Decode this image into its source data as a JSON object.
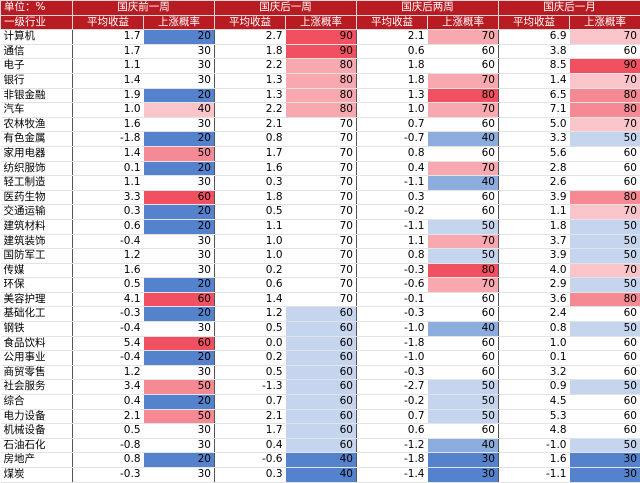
{
  "table": {
    "header": {
      "unit": "单位：%",
      "groups": [
        "国庆前一周",
        "国庆后一周",
        "国庆后两周",
        "国庆后一月"
      ],
      "columns": [
        "一级行业",
        "平均收益",
        "上涨概率",
        "平均收益",
        "上涨概率",
        "平均收益",
        "上涨概率",
        "平均收益",
        "上涨概率"
      ]
    },
    "rows": [
      [
        "计算机",
        "1.7",
        20,
        "2.7",
        90,
        "2.1",
        70,
        "6.9",
        70
      ],
      [
        "通信",
        "1.7",
        30,
        "1.8",
        90,
        "0.6",
        60,
        "3.8",
        60
      ],
      [
        "电子",
        "1.1",
        30,
        "2.2",
        80,
        "1.8",
        60,
        "8.5",
        90
      ],
      [
        "银行",
        "1.4",
        30,
        "1.3",
        80,
        "1.8",
        70,
        "1.4",
        70
      ],
      [
        "非银金融",
        "1.9",
        20,
        "1.3",
        80,
        "1.3",
        80,
        "6.5",
        80
      ],
      [
        "汽车",
        "1.0",
        40,
        "2.2",
        80,
        "1.0",
        70,
        "7.1",
        80
      ],
      [
        "农林牧渔",
        "1.6",
        30,
        "2.1",
        70,
        "0.7",
        60,
        "5.0",
        70
      ],
      [
        "有色金属",
        "-1.8",
        20,
        "0.8",
        70,
        "-0.7",
        40,
        "3.3",
        50
      ],
      [
        "家用电器",
        "1.4",
        50,
        "1.7",
        70,
        "0.8",
        60,
        "5.6",
        60
      ],
      [
        "纺织服饰",
        "0.1",
        20,
        "1.6",
        70,
        "0.4",
        70,
        "2.8",
        60
      ],
      [
        "轻工制造",
        "1.1",
        30,
        "0.3",
        70,
        "-1.1",
        40,
        "2.6",
        60
      ],
      [
        "医药生物",
        "3.3",
        60,
        "1.8",
        70,
        "0.3",
        60,
        "3.9",
        80
      ],
      [
        "交通运输",
        "0.3",
        20,
        "0.5",
        70,
        "-0.2",
        60,
        "1.1",
        70
      ],
      [
        "建筑材料",
        "0.6",
        20,
        "1.1",
        70,
        "-1.1",
        50,
        "1.8",
        50
      ],
      [
        "建筑装饰",
        "-0.4",
        30,
        "1.0",
        70,
        "1.1",
        70,
        "3.7",
        50
      ],
      [
        "国防军工",
        "1.2",
        30,
        "1.0",
        70,
        "0.8",
        50,
        "3.9",
        50
      ],
      [
        "传媒",
        "1.6",
        30,
        "0.2",
        70,
        "-0.3",
        80,
        "4.0",
        70
      ],
      [
        "环保",
        "0.5",
        20,
        "0.6",
        70,
        "-0.6",
        70,
        "2.9",
        50
      ],
      [
        "美容护理",
        "4.1",
        60,
        "1.4",
        70,
        "-0.1",
        60,
        "3.6",
        80
      ],
      [
        "基础化工",
        "-0.3",
        20,
        "1.2",
        60,
        "-0.3",
        60,
        "2.4",
        60
      ],
      [
        "钢铁",
        "-0.4",
        30,
        "0.5",
        60,
        "-1.0",
        40,
        "0.8",
        50
      ],
      [
        "食品饮料",
        "5.4",
        60,
        "0.0",
        60,
        "-1.8",
        60,
        "1.0",
        60
      ],
      [
        "公用事业",
        "-0.4",
        20,
        "0.2",
        60,
        "-1.0",
        60,
        "0.1",
        60
      ],
      [
        "商贸零售",
        "1.2",
        30,
        "0.5",
        60,
        "-0.3",
        60,
        "3.2",
        60
      ],
      [
        "社会服务",
        "3.4",
        50,
        "-1.3",
        60,
        "-2.7",
        50,
        "0.9",
        50
      ],
      [
        "综合",
        "0.4",
        20,
        "0.7",
        60,
        "-0.2",
        50,
        "4.5",
        60
      ],
      [
        "电力设备",
        "2.1",
        50,
        "2.1",
        60,
        "0.7",
        50,
        "5.3",
        60
      ],
      [
        "机械设备",
        "0.5",
        30,
        "1.7",
        60,
        "0.6",
        60,
        "4.8",
        60
      ],
      [
        "石油石化",
        "-0.8",
        30,
        "0.4",
        60,
        "-1.2",
        40,
        "-1.0",
        50
      ],
      [
        "房地产",
        "0.8",
        20,
        "-0.6",
        40,
        "-1.8",
        30,
        "1.6",
        30
      ],
      [
        "煤炭",
        "-0.3",
        30,
        "0.3",
        40,
        "-1.4",
        30,
        "-1.1",
        30
      ]
    ]
  }
}
